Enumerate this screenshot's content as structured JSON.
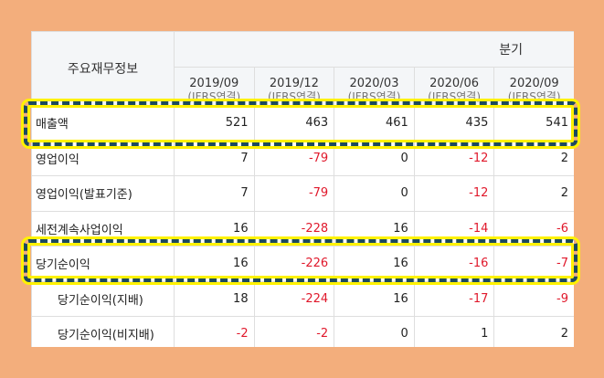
{
  "table": {
    "title": "주요재무정보",
    "group_header": "분기",
    "periods": [
      {
        "period": "2019/09",
        "basis": "(IFRS연결)"
      },
      {
        "period": "2019/12",
        "basis": "(IFRS연결)"
      },
      {
        "period": "2020/03",
        "basis": "(IFRS연결)"
      },
      {
        "period": "2020/06",
        "basis": "(IFRS연결)"
      },
      {
        "period": "2020/09",
        "basis": "(IFRS연결)"
      }
    ],
    "rows": [
      {
        "label": "매출액",
        "values": [
          "521",
          "463",
          "461",
          "435",
          "541"
        ],
        "highlight": true
      },
      {
        "label": "영업이익",
        "values": [
          "7",
          "-79",
          "0",
          "-12",
          "2"
        ]
      },
      {
        "label": "영업이익(발표기준)",
        "values": [
          "7",
          "-79",
          "0",
          "-12",
          "2"
        ]
      },
      {
        "label": "세전계속사업이익",
        "values": [
          "16",
          "-228",
          "16",
          "-14",
          "-6"
        ]
      },
      {
        "label": "당기순이익",
        "values": [
          "16",
          "-226",
          "16",
          "-16",
          "-7"
        ],
        "highlight": true
      },
      {
        "label": "당기순이익(지배)",
        "values": [
          "18",
          "-224",
          "16",
          "-17",
          "-9"
        ],
        "indent": true
      },
      {
        "label": "당기순이익(비지배)",
        "values": [
          "-2",
          "-2",
          "0",
          "1",
          "2"
        ],
        "indent": true
      }
    ]
  },
  "colors": {
    "background": "#f3ae7c",
    "negative": "#e0182b",
    "highlight_border": "#1c4a5e",
    "highlight_glow": "#fff200"
  }
}
